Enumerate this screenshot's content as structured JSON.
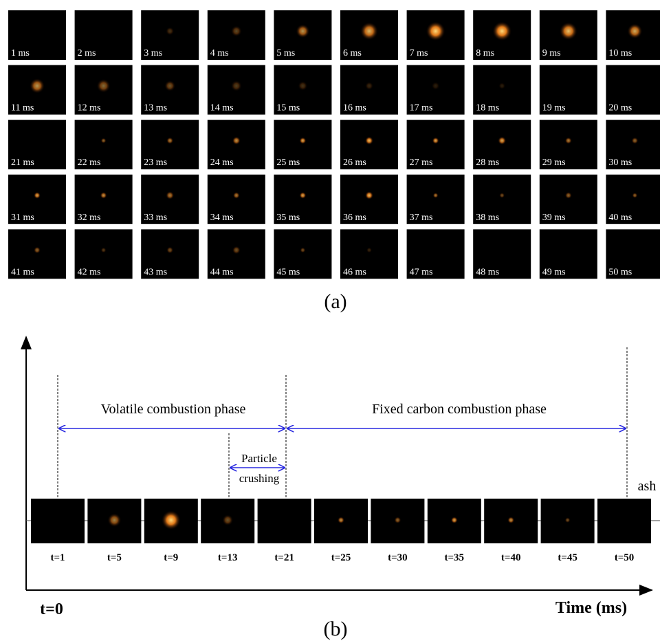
{
  "panel_a": {
    "frames": [
      "1 ms",
      "2 ms",
      "3 ms",
      "4 ms",
      "5 ms",
      "6 ms",
      "7 ms",
      "8 ms",
      "9 ms",
      "10 ms",
      "11 ms",
      "12 ms",
      "13 ms",
      "14 ms",
      "15 ms",
      "16 ms",
      "17 ms",
      "18 ms",
      "19 ms",
      "20 ms",
      "21 ms",
      "22 ms",
      "23 ms",
      "24 ms",
      "25 ms",
      "26 ms",
      "27 ms",
      "28 ms",
      "29 ms",
      "30 ms",
      "31 ms",
      "32 ms",
      "33 ms",
      "34 ms",
      "35 ms",
      "36 ms",
      "37 ms",
      "38 ms",
      "39 ms",
      "40 ms",
      "41 ms",
      "42 ms",
      "43 ms",
      "44 ms",
      "45 ms",
      "46 ms",
      "47 ms",
      "48 ms",
      "49 ms",
      "50 ms"
    ],
    "caption": "(a)"
  },
  "panel_b": {
    "phases": {
      "volatile": "Volatile combustion phase",
      "fixed_carbon": "Fixed carbon combustion phase",
      "crushing": [
        "Particle",
        "crushing"
      ]
    },
    "ash": "ash",
    "frames": [
      "t=1",
      "t=5",
      "t=9",
      "t=13",
      "t=21",
      "t=25",
      "t=30",
      "t=35",
      "t=40",
      "t=45",
      "t=50"
    ],
    "origin": "t=0",
    "axis_label": "Time (ms)",
    "caption": "(b)"
  }
}
